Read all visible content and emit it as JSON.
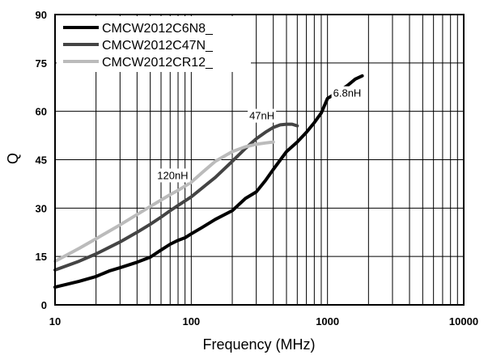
{
  "chart_data": {
    "type": "line",
    "xlabel": "Frequency (MHz)",
    "ylabel": "Q",
    "xscale": "log",
    "xlim": [
      10,
      10000
    ],
    "ylim": [
      0,
      90
    ],
    "xticks": [
      10,
      100,
      1000,
      10000
    ],
    "xtick_labels": [
      "10",
      "100",
      "1000",
      "10000"
    ],
    "yticks": [
      0,
      15,
      30,
      45,
      60,
      75,
      90
    ],
    "ytick_labels": [
      "0",
      "15",
      "30",
      "45",
      "60",
      "75",
      "90"
    ],
    "grid": true,
    "legend_position": "top-left",
    "series": [
      {
        "name": "CMCW2012C6N8_",
        "color": "#000000",
        "annotation": "6.8nH",
        "x": [
          10,
          15,
          20,
          25,
          30,
          40,
          50,
          60,
          70,
          80,
          90,
          100,
          120,
          150,
          200,
          250,
          300,
          350,
          400,
          500,
          600,
          700,
          800,
          900,
          1000,
          1200,
          1400,
          1600,
          1800
        ],
        "y": [
          5.5,
          7.3,
          8.8,
          10.5,
          11.5,
          13.2,
          14.8,
          17.0,
          18.8,
          20.0,
          20.8,
          22.0,
          24.0,
          26.5,
          29.2,
          33.0,
          35.0,
          38.5,
          42.0,
          47.5,
          50.5,
          53.5,
          56.5,
          59.5,
          64.0,
          66.0,
          68.0,
          70.0,
          71.0
        ]
      },
      {
        "name": "CMCW2012C47N_",
        "color": "#444444",
        "annotation": "47nH",
        "x": [
          10,
          15,
          20,
          30,
          40,
          50,
          60,
          70,
          80,
          100,
          150,
          200,
          250,
          300,
          350,
          400,
          450,
          500,
          550,
          600
        ],
        "y": [
          10.8,
          13.5,
          15.8,
          19.5,
          22.5,
          25.0,
          27.2,
          29.2,
          30.8,
          33.5,
          39.5,
          44.5,
          48.5,
          51.5,
          53.5,
          55.0,
          55.8,
          56.0,
          56.0,
          55.5
        ]
      },
      {
        "name": "CMCW2012CR12_",
        "color": "#bbbbbb",
        "annotation": "120nH",
        "x": [
          10,
          15,
          20,
          30,
          40,
          50,
          60,
          70,
          80,
          100,
          120,
          150,
          200,
          250,
          300,
          350,
          400
        ],
        "y": [
          13.5,
          17.5,
          20.5,
          24.8,
          28.0,
          30.5,
          32.5,
          34.2,
          35.5,
          38.0,
          41.0,
          44.5,
          47.5,
          49.0,
          49.8,
          50.2,
          50.5
        ]
      }
    ]
  }
}
